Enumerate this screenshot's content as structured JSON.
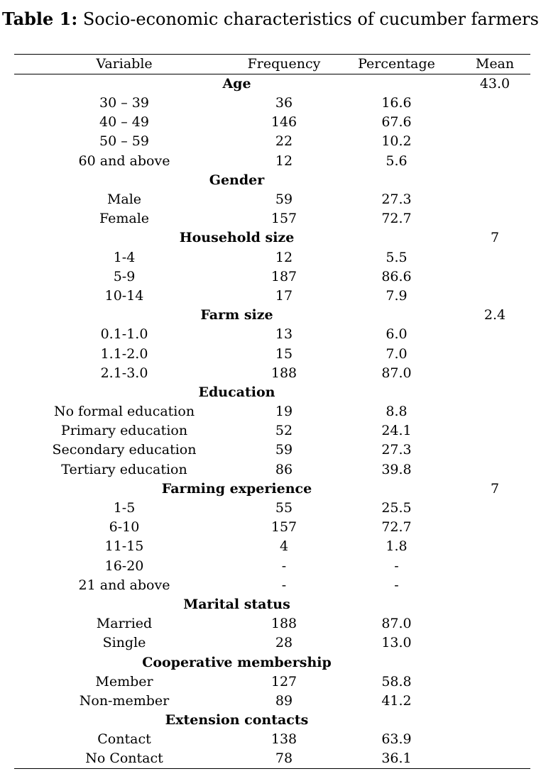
{
  "caption": {
    "label": "Table 1:",
    "text": " Socio-economic characteristics of cucumber farmers"
  },
  "headers": {
    "variable": "Variable",
    "frequency": "Frequency",
    "percentage": "Percentage",
    "mean": "Mean"
  },
  "groups": [
    {
      "name": "Age",
      "mean": "43.0",
      "rows": [
        {
          "label": "30 – 39",
          "frequency": "36",
          "percentage": "16.6"
        },
        {
          "label": "40 – 49",
          "frequency": "146",
          "percentage": "67.6"
        },
        {
          "label": "50 – 59",
          "frequency": "22",
          "percentage": "10.2"
        },
        {
          "label": "60 and above",
          "frequency": "12",
          "percentage": "5.6"
        }
      ]
    },
    {
      "name": "Gender",
      "mean": "",
      "rows": [
        {
          "label": "Male",
          "frequency": "59",
          "percentage": "27.3"
        },
        {
          "label": "Female",
          "frequency": "157",
          "percentage": "72.7"
        }
      ]
    },
    {
      "name": "Household size",
      "mean": "7",
      "rows": [
        {
          "label": "1-4",
          "frequency": "12",
          "percentage": "5.5"
        },
        {
          "label": "5-9",
          "frequency": "187",
          "percentage": "86.6"
        },
        {
          "label": "10-14",
          "frequency": "17",
          "percentage": "7.9"
        }
      ]
    },
    {
      "name": "Farm size",
      "mean": "2.4",
      "rows": [
        {
          "label": "0.1-1.0",
          "frequency": "13",
          "percentage": "6.0"
        },
        {
          "label": "1.1-2.0",
          "frequency": "15",
          "percentage": "7.0"
        },
        {
          "label": "2.1-3.0",
          "frequency": "188",
          "percentage": "87.0"
        }
      ]
    },
    {
      "name": "Education",
      "mean": "",
      "rows": [
        {
          "label": "No formal education",
          "frequency": "19",
          "percentage": "8.8"
        },
        {
          "label": "Primary education",
          "frequency": "52",
          "percentage": "24.1"
        },
        {
          "label": "Secondary education",
          "frequency": "59",
          "percentage": "27.3"
        },
        {
          "label": "Tertiary education",
          "frequency": "86",
          "percentage": "39.8"
        }
      ]
    },
    {
      "name": "Farming experience",
      "mean": "7",
      "rows": [
        {
          "label": "1-5",
          "frequency": "55",
          "percentage": "25.5"
        },
        {
          "label": "6-10",
          "frequency": "157",
          "percentage": "72.7"
        },
        {
          "label": "11-15",
          "frequency": "4",
          "percentage": "1.8"
        },
        {
          "label": "16-20",
          "frequency": "-",
          "percentage": "-"
        },
        {
          "label": "21 and above",
          "frequency": "-",
          "percentage": "-"
        }
      ]
    },
    {
      "name": "Marital status",
      "mean": "",
      "rows": [
        {
          "label": "Married",
          "frequency": "188",
          "percentage": "87.0"
        },
        {
          "label": "Single",
          "frequency": "28",
          "percentage": "13.0"
        }
      ]
    },
    {
      "name": "Cooperative membership",
      "mean": "",
      "rows": [
        {
          "label": "Member",
          "frequency": "127",
          "percentage": "58.8"
        },
        {
          "label": "Non-member",
          "frequency": "89",
          "percentage": "41.2"
        }
      ]
    },
    {
      "name": "Extension contacts",
      "mean": "",
      "rows": [
        {
          "label": "Contact",
          "frequency": "138",
          "percentage": "63.9"
        },
        {
          "label": "No Contact",
          "frequency": "78",
          "percentage": "36.1"
        }
      ]
    }
  ]
}
